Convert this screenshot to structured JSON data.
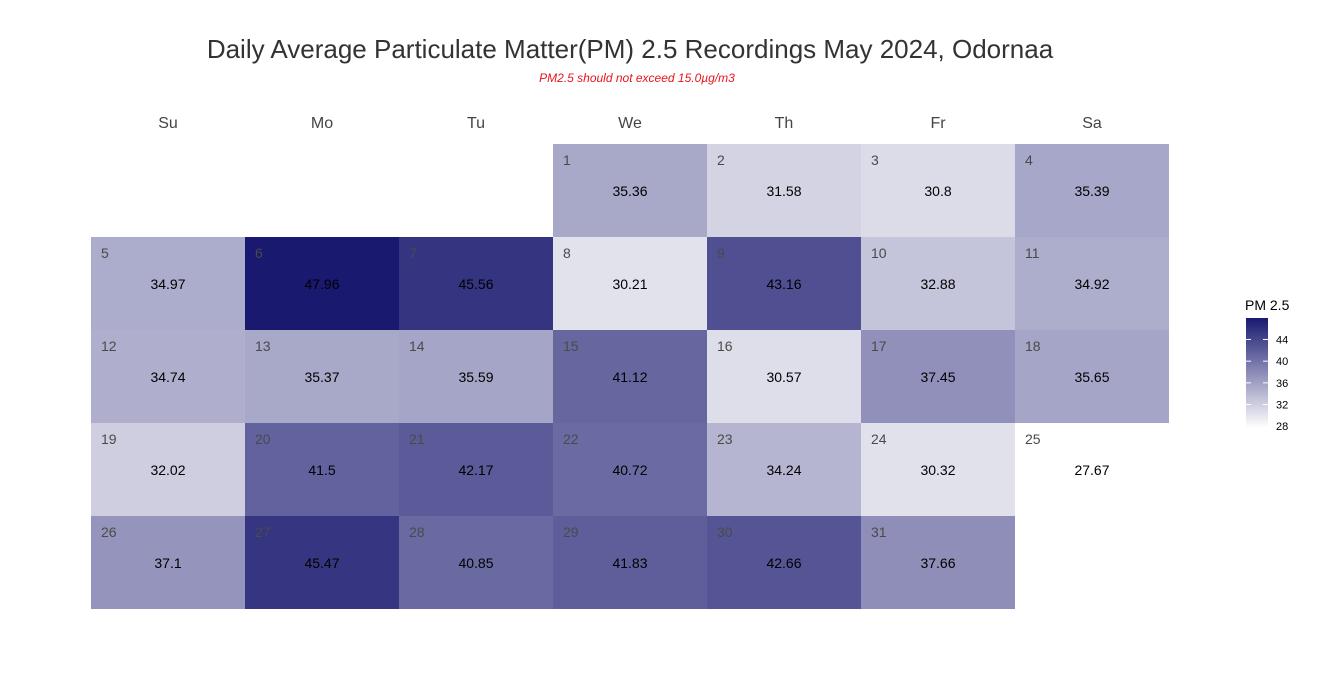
{
  "chart_data": {
    "type": "heatmap",
    "title": "Daily Average Particulate Matter(PM) 2.5 Recordings May 2024,  Odornaa",
    "subtitle": "PM2.5 should not exceed 15.0µg/m3",
    "subtitle_color": "#e8141c",
    "weekdays": [
      "Su",
      "Mo",
      "Tu",
      "We",
      "Th",
      "Fr",
      "Sa"
    ],
    "month": "May 2024",
    "first_weekday_index": 3,
    "days": [
      {
        "day": 1,
        "value": 35.36
      },
      {
        "day": 2,
        "value": 31.58
      },
      {
        "day": 3,
        "value": 30.8
      },
      {
        "day": 4,
        "value": 35.39
      },
      {
        "day": 5,
        "value": 34.97
      },
      {
        "day": 6,
        "value": 47.96
      },
      {
        "day": 7,
        "value": 45.56
      },
      {
        "day": 8,
        "value": 30.21
      },
      {
        "day": 9,
        "value": 43.16
      },
      {
        "day": 10,
        "value": 32.88
      },
      {
        "day": 11,
        "value": 34.92
      },
      {
        "day": 12,
        "value": 34.74
      },
      {
        "day": 13,
        "value": 35.37
      },
      {
        "day": 14,
        "value": 35.59
      },
      {
        "day": 15,
        "value": 41.12
      },
      {
        "day": 16,
        "value": 30.57
      },
      {
        "day": 17,
        "value": 37.45
      },
      {
        "day": 18,
        "value": 35.65
      },
      {
        "day": 19,
        "value": 32.02
      },
      {
        "day": 20,
        "value": 41.5
      },
      {
        "day": 21,
        "value": 42.17
      },
      {
        "day": 22,
        "value": 40.72
      },
      {
        "day": 23,
        "value": 34.24
      },
      {
        "day": 24,
        "value": 30.32
      },
      {
        "day": 25,
        "value": 27.67
      },
      {
        "day": 26,
        "value": 37.1
      },
      {
        "day": 27,
        "value": 45.47
      },
      {
        "day": 28,
        "value": 40.85
      },
      {
        "day": 29,
        "value": 41.83
      },
      {
        "day": 30,
        "value": 42.66
      },
      {
        "day": 31,
        "value": 37.66
      }
    ],
    "color_scale": {
      "low_color": "#ffffff",
      "high_color": "#191970",
      "min": 27.67,
      "max": 47.96
    },
    "legend": {
      "title": "PM 2.5",
      "ticks": [
        28,
        32,
        36,
        40,
        44
      ],
      "placement": "right"
    },
    "grid": false
  }
}
